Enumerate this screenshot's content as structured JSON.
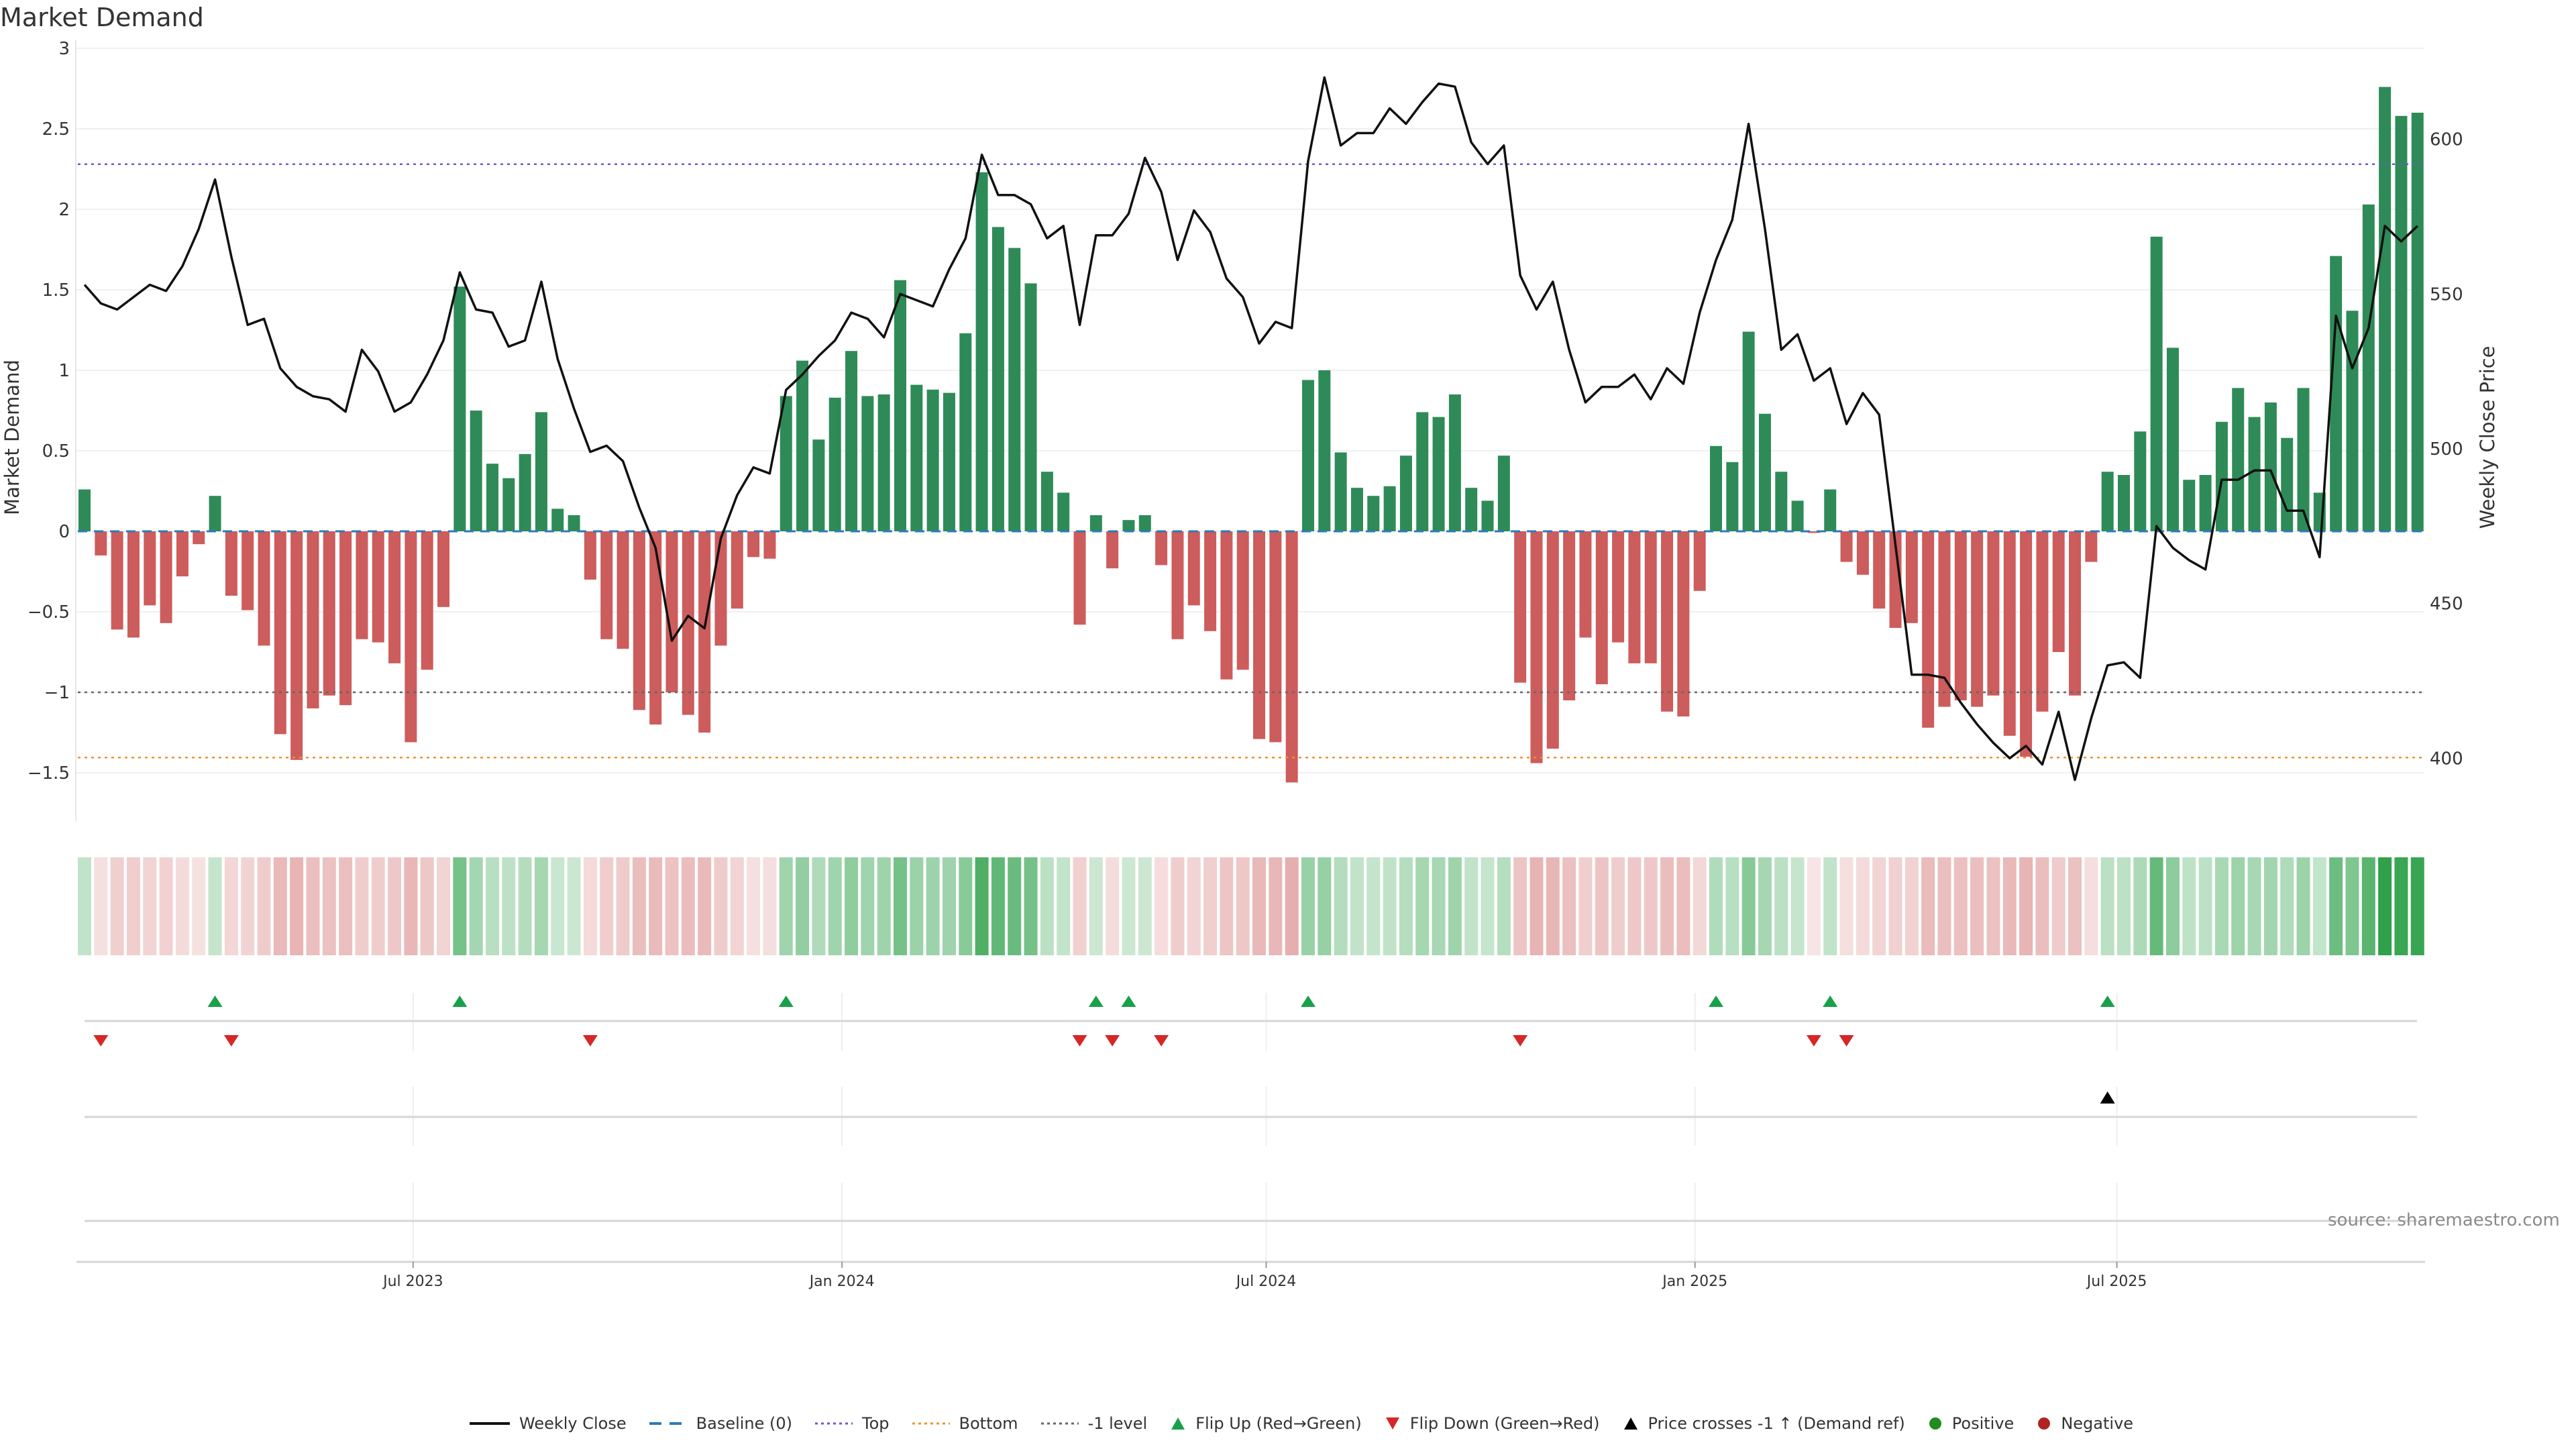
{
  "title": "Market Demand",
  "source": "source: sharemaestro.com",
  "colors": {
    "positive_bar": "#2e8b57",
    "negative_bar": "#cd5c5c",
    "price_line": "#111111",
    "baseline": "#2b7bb9",
    "top": "#6a5acd",
    "bottom": "#f0922b",
    "minus1": "#666666",
    "flip_up": "#18a04a",
    "flip_down": "#d62728",
    "cross": "#000000",
    "positive_dot": "#228b22",
    "negative_dot": "#b22222"
  },
  "legend": {
    "weekly_close": "Weekly Close",
    "baseline": "Baseline (0)",
    "top": "Top",
    "bottom": "Bottom",
    "minus1": "-1 level",
    "flip_up": "Flip Up (Red→Green)",
    "flip_down": "Flip Down (Green→Red)",
    "cross": "Price crosses -1 ↑ (Demand ref)",
    "positive": "Positive",
    "negative": "Negative"
  },
  "chart_data": {
    "type": "bar",
    "title": "Market Demand",
    "ylabel": "Market Demand",
    "y2label": "Weekly Close Price",
    "start_date": "2023-02-10",
    "frequency": "weekly",
    "ylim": [
      -1.8,
      3.05
    ],
    "y2lim": [
      379.7,
      632
    ],
    "yticks": [
      {
        "v": -1.5,
        "label": "−1.5"
      },
      {
        "v": -1,
        "label": "−1"
      },
      {
        "v": -0.5,
        "label": "−0.5"
      },
      {
        "v": 0,
        "label": "0"
      },
      {
        "v": 0.5,
        "label": "0.5"
      },
      {
        "v": 1,
        "label": "1"
      },
      {
        "v": 1.5,
        "label": "1.5"
      },
      {
        "v": 2,
        "label": "2"
      },
      {
        "v": 2.5,
        "label": "2.5"
      },
      {
        "v": 3,
        "label": "3"
      }
    ],
    "y2ticks": [
      {
        "v": 400,
        "label": "400"
      },
      {
        "v": 450,
        "label": "450"
      },
      {
        "v": 500,
        "label": "500"
      },
      {
        "v": 550,
        "label": "550"
      },
      {
        "v": 600,
        "label": "600"
      }
    ],
    "xticks": [
      {
        "date": "2023-07-01",
        "label": "Jul 2023"
      },
      {
        "date": "2024-01-01",
        "label": "Jan 2024"
      },
      {
        "date": "2024-07-01",
        "label": "Jul 2024"
      },
      {
        "date": "2025-01-01",
        "label": "Jan 2025"
      },
      {
        "date": "2025-07-01",
        "label": "Jul 2025"
      }
    ],
    "levels": {
      "top": 2.28,
      "bottom": -1.405,
      "minus1": -1,
      "baseline": 0
    },
    "minus1_price_equiv": 421.7,
    "demand": [
      0.26,
      -0.15,
      -0.61,
      -0.66,
      -0.46,
      -0.57,
      -0.28,
      -0.08,
      0.22,
      -0.4,
      -0.49,
      -0.71,
      -1.26,
      -1.42,
      -1.1,
      -1.02,
      -1.08,
      -0.67,
      -0.69,
      -0.82,
      -1.31,
      -0.86,
      -0.47,
      1.52,
      0.75,
      0.42,
      0.33,
      0.48,
      0.74,
      0.14,
      0.1,
      -0.3,
      -0.67,
      -0.73,
      -1.11,
      -1.2,
      -1.0,
      -1.14,
      -1.25,
      -0.71,
      -0.48,
      -0.16,
      -0.17,
      0.84,
      1.06,
      0.57,
      0.83,
      1.12,
      0.84,
      0.85,
      1.56,
      0.91,
      0.88,
      0.86,
      1.23,
      2.23,
      1.89,
      1.76,
      1.54,
      0.37,
      0.24,
      -0.58,
      0.1,
      -0.23,
      0.07,
      0.1,
      -0.21,
      -0.67,
      -0.46,
      -0.62,
      -0.92,
      -0.86,
      -1.29,
      -1.31,
      -1.56,
      0.94,
      1.0,
      0.49,
      0.27,
      0.22,
      0.28,
      0.47,
      0.74,
      0.71,
      0.85,
      0.27,
      0.19,
      0.47,
      -0.94,
      -1.44,
      -1.35,
      -1.05,
      -0.66,
      -0.95,
      -0.69,
      -0.82,
      -0.82,
      -1.12,
      -1.15,
      -0.37,
      0.53,
      0.43,
      1.24,
      0.73,
      0.37,
      0.19,
      -0.01,
      0.26,
      -0.19,
      -0.27,
      -0.48,
      -0.6,
      -0.57,
      -1.22,
      -1.09,
      -1.05,
      -1.09,
      -1.02,
      -1.27,
      -1.4,
      -1.12,
      -0.75,
      -1.02,
      -0.19,
      0.37,
      0.35,
      0.62,
      1.83,
      1.14,
      0.32,
      0.35,
      0.68,
      0.89,
      0.71,
      0.8,
      0.58,
      0.89,
      0.24,
      1.71,
      1.37,
      2.03,
      2.76,
      2.58,
      2.6
    ],
    "weekly_close": [
      553,
      547,
      545,
      549,
      553,
      551,
      559,
      571,
      587,
      562,
      540,
      542,
      526,
      520,
      517,
      516,
      512,
      532,
      525,
      512,
      515,
      524,
      535,
      557,
      545,
      544,
      533,
      535,
      554,
      529,
      513,
      499,
      501,
      496,
      481,
      468,
      438,
      446,
      442,
      471,
      485,
      494,
      492,
      519,
      524,
      530,
      535,
      544,
      542,
      536,
      550,
      548,
      546,
      558,
      568,
      595,
      582,
      582,
      579,
      568,
      572,
      540,
      569,
      569,
      576,
      594,
      583,
      561,
      577,
      570,
      555,
      549,
      534,
      541,
      539,
      593,
      620,
      598,
      602,
      602,
      610,
      605,
      612,
      618,
      617,
      599,
      592,
      598,
      556,
      545,
      554,
      532,
      515,
      520,
      520,
      524,
      516,
      526,
      521,
      544,
      561,
      574,
      605,
      571,
      532,
      537,
      522,
      526,
      508,
      518,
      511,
      469,
      427,
      427,
      426,
      418,
      411,
      405,
      400,
      404,
      398,
      415,
      393,
      413,
      430,
      431,
      426,
      475,
      468,
      464,
      461,
      490,
      490,
      493,
      493,
      480,
      480,
      465,
      543,
      526,
      539,
      572,
      567,
      572
    ]
  }
}
